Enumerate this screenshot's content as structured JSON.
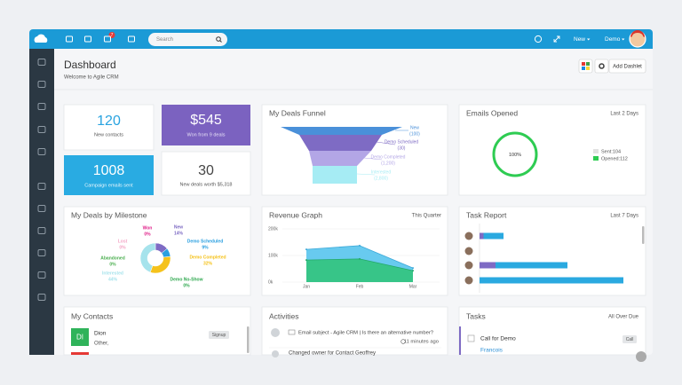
{
  "topbar": {
    "notification_count": "7",
    "search_placeholder": "Search",
    "new_menu": "New",
    "user_menu": "Demo"
  },
  "header": {
    "title": "Dashboard",
    "subtitle": "Welcome to Agile CRM",
    "add_button": "Add Dashlet"
  },
  "stats": [
    {
      "value": "120",
      "label": "New contacts"
    },
    {
      "value": "$545",
      "label": "Won from 9 deals"
    },
    {
      "value": "1008",
      "label": "Campaign emails sent"
    },
    {
      "value": "30",
      "label": "New deals worth $5,318"
    }
  ],
  "funnel": {
    "title": "My Deals Funnel",
    "type": "funnel",
    "categories": [
      "New",
      "Demo Scheduled",
      "Demo Completed",
      "Interested"
    ],
    "values": [
      100,
      30,
      1200,
      2800
    ],
    "value_labels": [
      "(100)",
      "(30)",
      "(1,200)",
      "(2,800)"
    ],
    "colors": [
      "#4a90d9",
      "#7e6bc4",
      "#b3a6e6",
      "#a6ecf4"
    ]
  },
  "emails": {
    "title": "Emails Opened",
    "period": "Last 2 Days",
    "gauge": {
      "value": 100,
      "value_label": "100%",
      "color": "#2ecc52"
    },
    "legend": [
      {
        "label": "Sent:104",
        "color": "#e2e2e2"
      },
      {
        "label": "Opened:112",
        "color": "#2ecc52"
      }
    ]
  },
  "milestone": {
    "title": "My Deals by Milestone",
    "type": "pie",
    "categories": [
      "Won",
      "New",
      "Demo Scheduled",
      "Demo Completed",
      "Demo No-Show",
      "Interested",
      "Abandoned",
      "Lost"
    ],
    "values": [
      0,
      14,
      9,
      32,
      0,
      44,
      0,
      0
    ],
    "value_labels": [
      "0%",
      "14%",
      "9%",
      "32%",
      "0%",
      "44%",
      "0%",
      "0%"
    ],
    "colors": [
      "#e0218a",
      "#7e6bc4",
      "#2a9fe0",
      "#f5c21b",
      "#2fa84f",
      "#a6e3ec",
      "#4caf50",
      "#f4a6c6"
    ]
  },
  "revenue": {
    "title": "Revenue Graph",
    "period": "This Quarter",
    "type": "area",
    "categories": [
      "Jan",
      "Feb",
      "Mar"
    ],
    "series": [
      {
        "color": "#5bc6ee",
        "values": [
          123000,
          137000,
          53000
        ]
      },
      {
        "color": "#33c47f",
        "values": [
          83000,
          87000,
          43000
        ]
      }
    ],
    "ylim": [
      0,
      200000
    ],
    "yticks": [
      {
        "value": 0,
        "label": "0k"
      },
      {
        "value": 100000,
        "label": "100k"
      },
      {
        "value": 200000,
        "label": "200k"
      }
    ],
    "grid": true
  },
  "task_report": {
    "title": "Task Report",
    "period": "Last 7 Days",
    "type": "bar",
    "series": [
      {
        "color": "#7e6bc4",
        "values": [
          1,
          0,
          4,
          0
        ]
      },
      {
        "color": "#2aa9e0",
        "values": [
          5,
          0,
          18,
          36
        ]
      }
    ],
    "xlim": [
      0,
      40
    ]
  },
  "contacts": {
    "title": "My Contacts",
    "items": [
      {
        "initials": "DI",
        "name": "Dion",
        "detail": "Other,",
        "tag": "Signup"
      }
    ]
  },
  "activities": {
    "title": "Activities",
    "items": [
      {
        "text": "Email subject - Agile CRM | Is there an alternative number?",
        "time": "11 minutes ago"
      },
      {
        "text": "Changed owner for Contact Geoffrey"
      }
    ]
  },
  "tasks": {
    "title": "Tasks",
    "period": "All Over Due",
    "items": [
      {
        "name": "Call for Demo",
        "type": "Call",
        "contact": "Francois"
      }
    ]
  }
}
